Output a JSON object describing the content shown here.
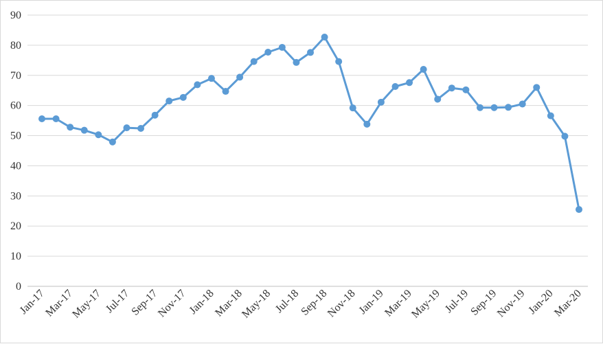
{
  "chart_data": {
    "type": "line",
    "title": "",
    "xlabel": "",
    "ylabel": "",
    "ylim": [
      0,
      90
    ],
    "yticks": [
      0,
      10,
      20,
      30,
      40,
      50,
      60,
      70,
      80,
      90
    ],
    "grid": true,
    "legend": "none",
    "line_color": "#5b9bd5",
    "x": [
      "Jan-17",
      "Feb-17",
      "Mar-17",
      "Apr-17",
      "May-17",
      "Jun-17",
      "Jul-17",
      "Aug-17",
      "Sep-17",
      "Oct-17",
      "Nov-17",
      "Dec-17",
      "Jan-18",
      "Feb-18",
      "Mar-18",
      "Apr-18",
      "May-18",
      "Jun-18",
      "Jul-18",
      "Aug-18",
      "Sep-18",
      "Oct-18",
      "Nov-18",
      "Dec-18",
      "Jan-19",
      "Feb-19",
      "Mar-19",
      "Apr-19",
      "May-19",
      "Jun-19",
      "Jul-19",
      "Aug-19",
      "Sep-19",
      "Oct-19",
      "Nov-19",
      "Dec-19",
      "Jan-20",
      "Feb-20",
      "Mar-20"
    ],
    "xtick_labels": [
      "Jan-17",
      "Mar-17",
      "May-17",
      "Jul-17",
      "Sep-17",
      "Nov-17",
      "Jan-18",
      "Mar-18",
      "May-18",
      "Jul-18",
      "Sep-18",
      "Nov-18",
      "Jan-19",
      "Mar-19",
      "May-19",
      "Jul-19",
      "Sep-19",
      "Nov-19",
      "Jan-20",
      "Mar-20"
    ],
    "series": [
      {
        "values": [
          55.6,
          55.6,
          52.8,
          51.8,
          50.3,
          47.9,
          52.6,
          52.4,
          56.8,
          61.5,
          62.7,
          66.9,
          69.0,
          64.7,
          69.4,
          74.6,
          77.7,
          79.3,
          74.3,
          77.6,
          82.7,
          74.6,
          59.2,
          53.8,
          61.1,
          66.3,
          67.6,
          72.0,
          62.1,
          65.8,
          65.2,
          59.3,
          59.3,
          59.4,
          60.5,
          66.0,
          56.6,
          49.8,
          25.5
        ]
      }
    ]
  }
}
